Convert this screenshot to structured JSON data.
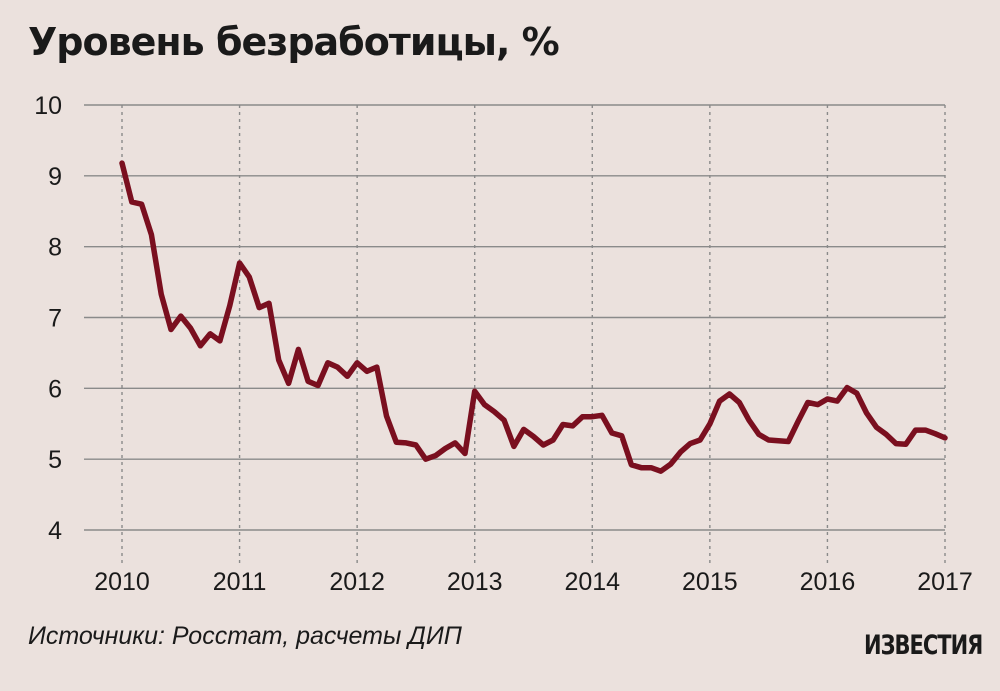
{
  "title": "Уровень безработицы, %",
  "source": "Источники: Росстат, расчеты ДИП",
  "logo": "ИЗВЕСТИЯ",
  "colors": {
    "background": "#ebe1dd",
    "line": "#7a0f1f",
    "grid": "#8a8a8a"
  },
  "chart_data": {
    "type": "line",
    "title": "Уровень безработицы, %",
    "xlabel": "",
    "ylabel": "",
    "x_ticks": [
      "2010",
      "2011",
      "2012",
      "2013",
      "2014",
      "2015",
      "2016",
      "2017"
    ],
    "y_ticks": [
      4,
      5,
      6,
      7,
      8,
      9,
      10
    ],
    "xlim": [
      2010,
      2017
    ],
    "ylim": [
      4,
      10
    ],
    "grid": "both",
    "series": [
      {
        "values": [
          [
            2010.0,
            9.18
          ],
          [
            2010.083,
            8.63
          ],
          [
            2010.167,
            8.6
          ],
          [
            2010.25,
            8.17
          ],
          [
            2010.333,
            7.33
          ],
          [
            2010.417,
            6.83
          ],
          [
            2010.5,
            7.02
          ],
          [
            2010.583,
            6.85
          ],
          [
            2010.667,
            6.6
          ],
          [
            2010.75,
            6.77
          ],
          [
            2010.833,
            6.67
          ],
          [
            2010.917,
            7.17
          ],
          [
            2011.0,
            7.77
          ],
          [
            2011.083,
            7.57
          ],
          [
            2011.167,
            7.14
          ],
          [
            2011.25,
            7.2
          ],
          [
            2011.333,
            6.4
          ],
          [
            2011.417,
            6.07
          ],
          [
            2011.5,
            6.55
          ],
          [
            2011.583,
            6.1
          ],
          [
            2011.667,
            6.04
          ],
          [
            2011.75,
            6.36
          ],
          [
            2011.833,
            6.3
          ],
          [
            2011.917,
            6.17
          ],
          [
            2012.0,
            6.36
          ],
          [
            2012.083,
            6.24
          ],
          [
            2012.167,
            6.3
          ],
          [
            2012.25,
            5.61
          ],
          [
            2012.333,
            5.24
          ],
          [
            2012.417,
            5.23
          ],
          [
            2012.5,
            5.2
          ],
          [
            2012.583,
            5.0
          ],
          [
            2012.667,
            5.05
          ],
          [
            2012.75,
            5.15
          ],
          [
            2012.833,
            5.23
          ],
          [
            2012.917,
            5.08
          ],
          [
            2013.0,
            5.96
          ],
          [
            2013.083,
            5.77
          ],
          [
            2013.167,
            5.67
          ],
          [
            2013.25,
            5.55
          ],
          [
            2013.333,
            5.18
          ],
          [
            2013.417,
            5.42
          ],
          [
            2013.5,
            5.32
          ],
          [
            2013.583,
            5.2
          ],
          [
            2013.667,
            5.27
          ],
          [
            2013.75,
            5.49
          ],
          [
            2013.833,
            5.47
          ],
          [
            2013.917,
            5.6
          ],
          [
            2014.0,
            5.6
          ],
          [
            2014.083,
            5.62
          ],
          [
            2014.167,
            5.37
          ],
          [
            2014.25,
            5.33
          ],
          [
            2014.333,
            4.92
          ],
          [
            2014.417,
            4.88
          ],
          [
            2014.5,
            4.88
          ],
          [
            2014.583,
            4.83
          ],
          [
            2014.667,
            4.93
          ],
          [
            2014.75,
            5.1
          ],
          [
            2014.833,
            5.22
          ],
          [
            2014.917,
            5.27
          ],
          [
            2015.0,
            5.5
          ],
          [
            2015.083,
            5.82
          ],
          [
            2015.167,
            5.92
          ],
          [
            2015.25,
            5.8
          ],
          [
            2015.333,
            5.55
          ],
          [
            2015.417,
            5.35
          ],
          [
            2015.5,
            5.27
          ],
          [
            2015.583,
            5.26
          ],
          [
            2015.667,
            5.25
          ],
          [
            2015.75,
            5.53
          ],
          [
            2015.833,
            5.8
          ],
          [
            2015.917,
            5.77
          ],
          [
            2016.0,
            5.85
          ],
          [
            2016.083,
            5.82
          ],
          [
            2016.167,
            6.01
          ],
          [
            2016.25,
            5.93
          ],
          [
            2016.333,
            5.65
          ],
          [
            2016.417,
            5.45
          ],
          [
            2016.5,
            5.35
          ],
          [
            2016.583,
            5.22
          ],
          [
            2016.667,
            5.21
          ],
          [
            2016.75,
            5.41
          ],
          [
            2016.833,
            5.41
          ],
          [
            2016.917,
            5.36
          ],
          [
            2017.0,
            5.3
          ]
        ]
      }
    ]
  }
}
